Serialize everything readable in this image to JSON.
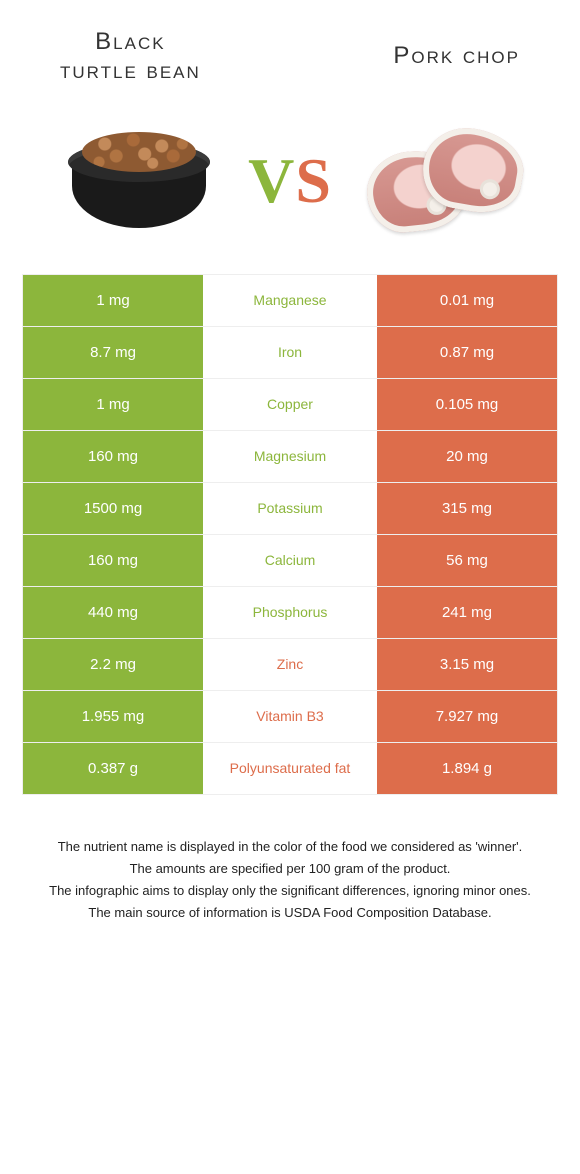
{
  "colors": {
    "left": "#8cb63c",
    "right": "#dd6d4b",
    "bg": "#ffffff",
    "row_border": "#eeeeee",
    "text": "#333333"
  },
  "header": {
    "left_title_line1": "Black",
    "left_title_line2": "turtle bean",
    "right_title": "Pork chop",
    "title_fontsize": 24,
    "vs_text": "VS",
    "vs_fontsize": 64
  },
  "images": {
    "left_alt": "bowl-of-beans",
    "right_alt": "raw-pork-chops"
  },
  "table": {
    "rows": [
      {
        "nutrient": "Manganese",
        "left": "1 mg",
        "right": "0.01 mg",
        "winner": "left"
      },
      {
        "nutrient": "Iron",
        "left": "8.7 mg",
        "right": "0.87 mg",
        "winner": "left"
      },
      {
        "nutrient": "Copper",
        "left": "1 mg",
        "right": "0.105 mg",
        "winner": "left"
      },
      {
        "nutrient": "Magnesium",
        "left": "160 mg",
        "right": "20 mg",
        "winner": "left"
      },
      {
        "nutrient": "Potassium",
        "left": "1500 mg",
        "right": "315 mg",
        "winner": "left"
      },
      {
        "nutrient": "Calcium",
        "left": "160 mg",
        "right": "56 mg",
        "winner": "left"
      },
      {
        "nutrient": "Phosphorus",
        "left": "440 mg",
        "right": "241 mg",
        "winner": "left"
      },
      {
        "nutrient": "Zinc",
        "left": "2.2 mg",
        "right": "3.15 mg",
        "winner": "right"
      },
      {
        "nutrient": "Vitamin B3",
        "left": "1.955 mg",
        "right": "7.927 mg",
        "winner": "right"
      },
      {
        "nutrient": "Polyunsaturated fat",
        "left": "0.387 g",
        "right": "1.894 g",
        "winner": "right"
      }
    ]
  },
  "footnotes": [
    "The nutrient name is displayed in the color of the food we considered as 'winner'.",
    "The amounts are specified per 100 gram of the product.",
    "The infographic aims to display only the significant differences, ignoring minor ones.",
    "The main source of information is USDA Food Composition Database."
  ]
}
